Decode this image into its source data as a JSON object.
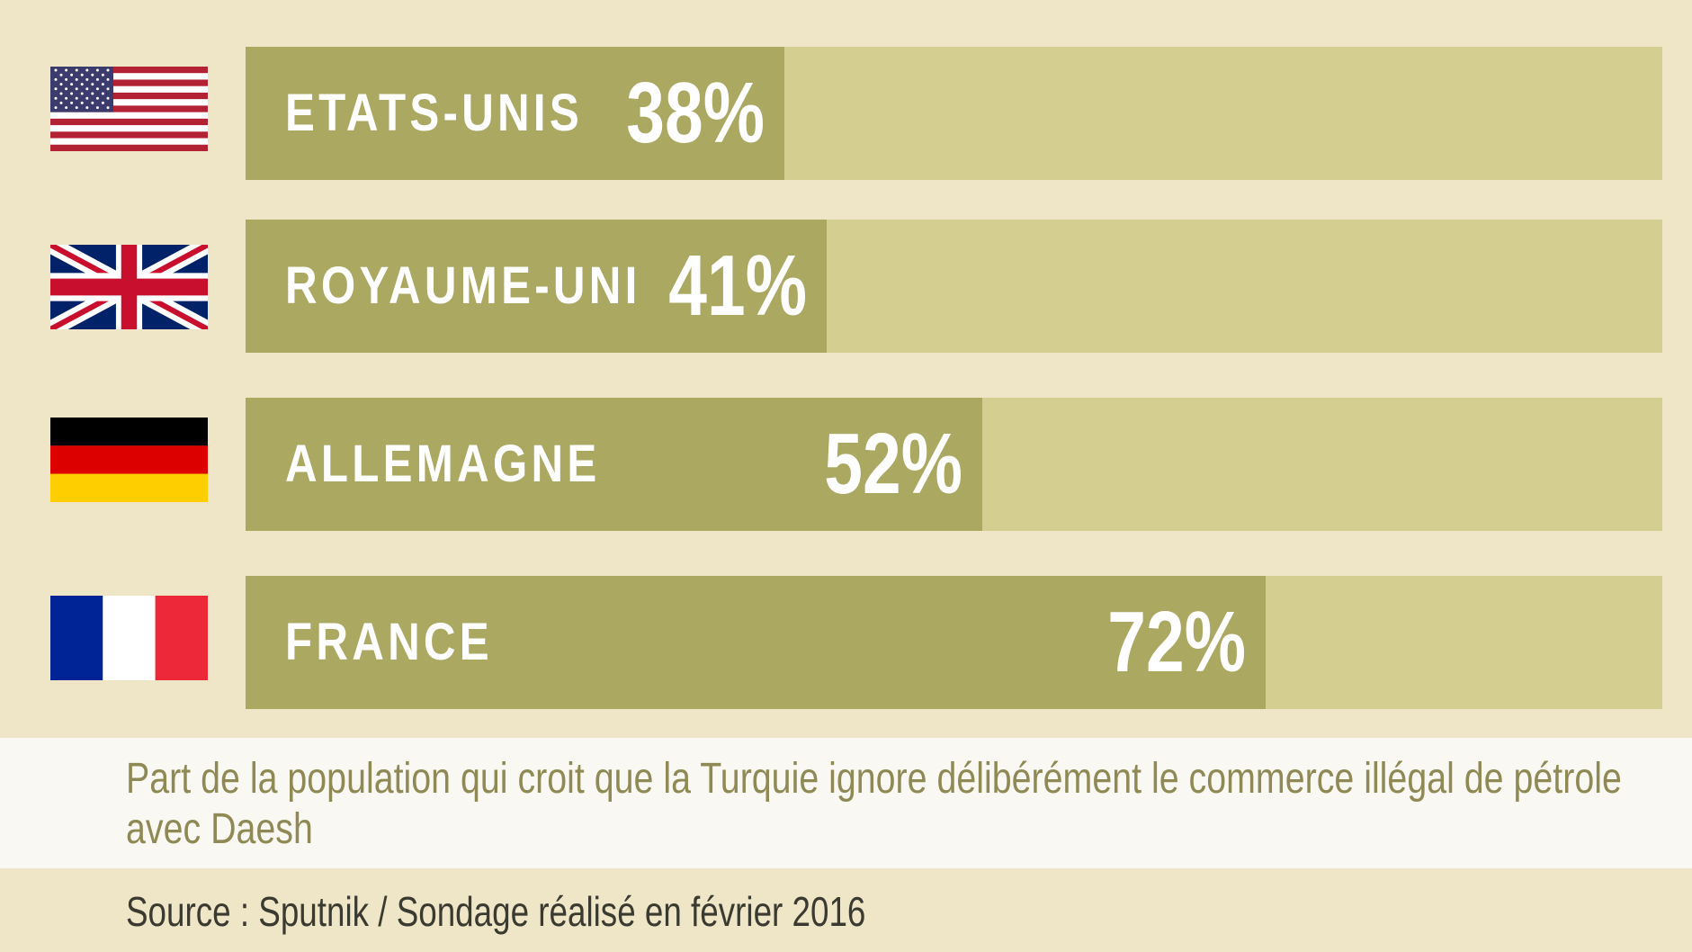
{
  "chart_data": {
    "type": "bar",
    "orientation": "horizontal",
    "categories": [
      "ETATS-UNIS",
      "ROYAUME-UNI",
      "ALLEMAGNE",
      "FRANCE"
    ],
    "values": [
      38,
      41,
      52,
      72
    ],
    "value_labels": [
      "38%",
      "41%",
      "52%",
      "72%"
    ],
    "xlim": [
      0,
      100
    ],
    "unit": "%",
    "flags": [
      "us-flag-icon",
      "uk-flag-icon",
      "germany-flag-icon",
      "france-flag-icon"
    ],
    "colors": {
      "background": "#efe6c8",
      "bar_fill": "#aba862",
      "bar_track": "#d5ce91",
      "caption_band": "#faf8f2",
      "caption_text": "#8f8a55"
    }
  },
  "caption": "Part de la population qui croit que la Turquie ignore délibérément le commerce illégal de pétrole avec Daesh",
  "source": "Source : Sputnik / Sondage réalisé en février 2016"
}
